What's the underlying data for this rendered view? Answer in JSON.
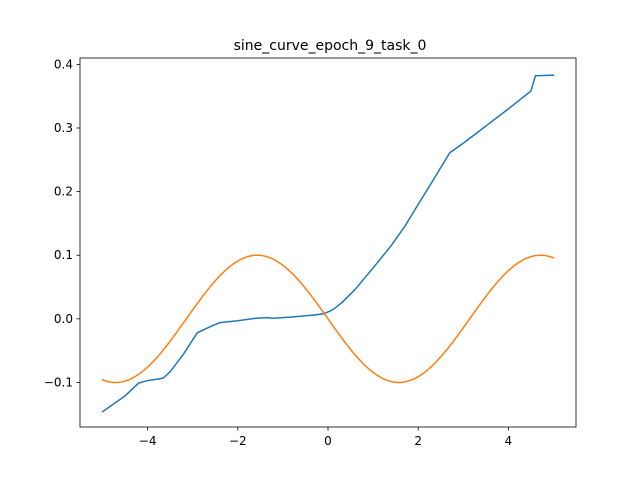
{
  "chart_data": {
    "type": "line",
    "title": "sine_curve_epoch_9_task_0",
    "xlabel": "",
    "ylabel": "",
    "xlim": [
      -5.5,
      5.5
    ],
    "ylim": [
      -0.17,
      0.41
    ],
    "xticks": [
      -4,
      -2,
      0,
      2,
      4
    ],
    "xtick_labels": [
      "−4",
      "−2",
      "0",
      "2",
      "4"
    ],
    "yticks": [
      -0.1,
      0.0,
      0.1,
      0.2,
      0.3,
      0.4
    ],
    "ytick_labels": [
      "−0.1",
      "0.0",
      "0.1",
      "0.2",
      "0.3",
      "0.4"
    ],
    "grid": false,
    "legend": "none",
    "series": [
      {
        "color": "#1f77b4",
        "points": [
          [
            -5.0,
            -0.146
          ],
          [
            -4.8,
            -0.136
          ],
          [
            -4.5,
            -0.121
          ],
          [
            -4.2,
            -0.101
          ],
          [
            -4.0,
            -0.097
          ],
          [
            -3.8,
            -0.095
          ],
          [
            -3.65,
            -0.093
          ],
          [
            -3.5,
            -0.083
          ],
          [
            -3.2,
            -0.055
          ],
          [
            -2.9,
            -0.022
          ],
          [
            -2.6,
            -0.012
          ],
          [
            -2.4,
            -0.006
          ],
          [
            -2.0,
            -0.003
          ],
          [
            -1.6,
            0.001
          ],
          [
            -1.35,
            0.002
          ],
          [
            -1.2,
            0.001
          ],
          [
            -0.8,
            0.003
          ],
          [
            -0.3,
            0.006
          ],
          [
            -0.1,
            0.008
          ],
          [
            0.1,
            0.014
          ],
          [
            0.3,
            0.025
          ],
          [
            0.6,
            0.046
          ],
          [
            1.0,
            0.08
          ],
          [
            1.4,
            0.115
          ],
          [
            1.7,
            0.145
          ],
          [
            2.0,
            0.18
          ],
          [
            2.35,
            0.22
          ],
          [
            2.7,
            0.261
          ],
          [
            3.0,
            0.276
          ],
          [
            3.5,
            0.303
          ],
          [
            4.0,
            0.33
          ],
          [
            4.5,
            0.358
          ],
          [
            4.6,
            0.382
          ],
          [
            5.0,
            0.383
          ]
        ]
      },
      {
        "color": "#ff7f0e",
        "function": "0.1*sin(-x)",
        "x_start": -5.0,
        "x_end": 5.0,
        "samples": 201
      }
    ]
  }
}
